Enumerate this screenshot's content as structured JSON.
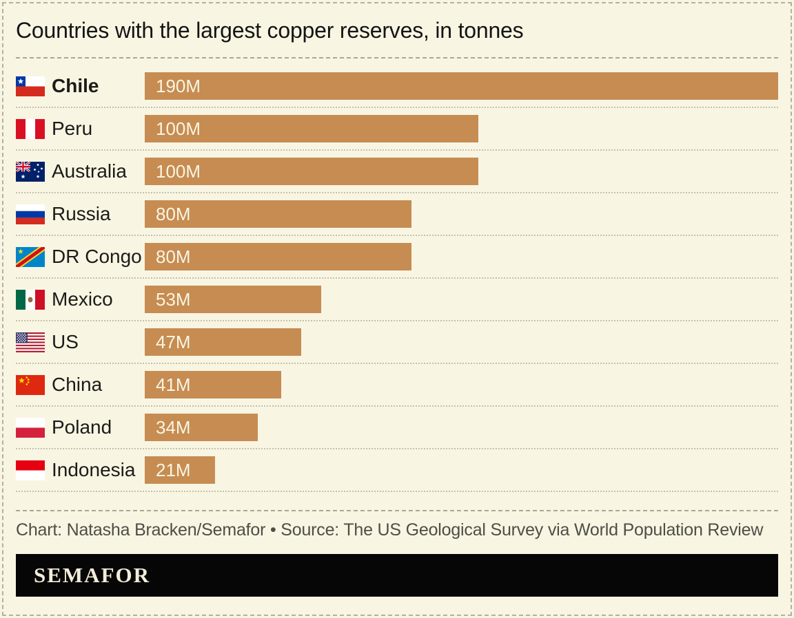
{
  "title": "Countries with the largest copper reserves, in tonnes",
  "credit": "Chart: Natasha Bracken/Semafor • Source: The US Geological Survey via World Population Review",
  "logo_text": "SEMAFOR",
  "colors": {
    "background": "#f9f5e3",
    "bar": "#c68c52",
    "bar_label": "#f9f5e1",
    "title_text": "#141414",
    "credit_text": "#4e4e47",
    "dashed_rule": "#a9a69c",
    "dotted_rule": "#c3c0ae",
    "frame_border": "#b3b0a4",
    "logo_background": "#060606",
    "logo_text_color": "#f2ecd8"
  },
  "chart_data": {
    "type": "bar",
    "orientation": "horizontal",
    "title": "Countries with the largest copper reserves, in tonnes",
    "unit": "million tonnes",
    "value_axis_max": 190,
    "grid": false,
    "legend": false,
    "categories": [
      "Chile",
      "Peru",
      "Australia",
      "Russia",
      "DR Congo",
      "Mexico",
      "US",
      "China",
      "Poland",
      "Indonesia"
    ],
    "values": [
      190,
      100,
      100,
      80,
      80,
      53,
      47,
      41,
      34,
      21
    ],
    "rows": [
      {
        "country": "Chile",
        "flag": "chile",
        "value": 190,
        "label": "190M",
        "bold": true
      },
      {
        "country": "Peru",
        "flag": "peru",
        "value": 100,
        "label": "100M",
        "bold": false
      },
      {
        "country": "Australia",
        "flag": "australia",
        "value": 100,
        "label": "100M",
        "bold": false
      },
      {
        "country": "Russia",
        "flag": "russia",
        "value": 80,
        "label": "80M",
        "bold": false
      },
      {
        "country": "DR Congo",
        "flag": "dr-congo",
        "value": 80,
        "label": "80M",
        "bold": false
      },
      {
        "country": "Mexico",
        "flag": "mexico",
        "value": 53,
        "label": "53M",
        "bold": false
      },
      {
        "country": "US",
        "flag": "us",
        "value": 47,
        "label": "47M",
        "bold": false
      },
      {
        "country": "China",
        "flag": "china",
        "value": 41,
        "label": "41M",
        "bold": false
      },
      {
        "country": "Poland",
        "flag": "poland",
        "value": 34,
        "label": "34M",
        "bold": false
      },
      {
        "country": "Indonesia",
        "flag": "indonesia",
        "value": 21,
        "label": "21M",
        "bold": false
      }
    ]
  }
}
